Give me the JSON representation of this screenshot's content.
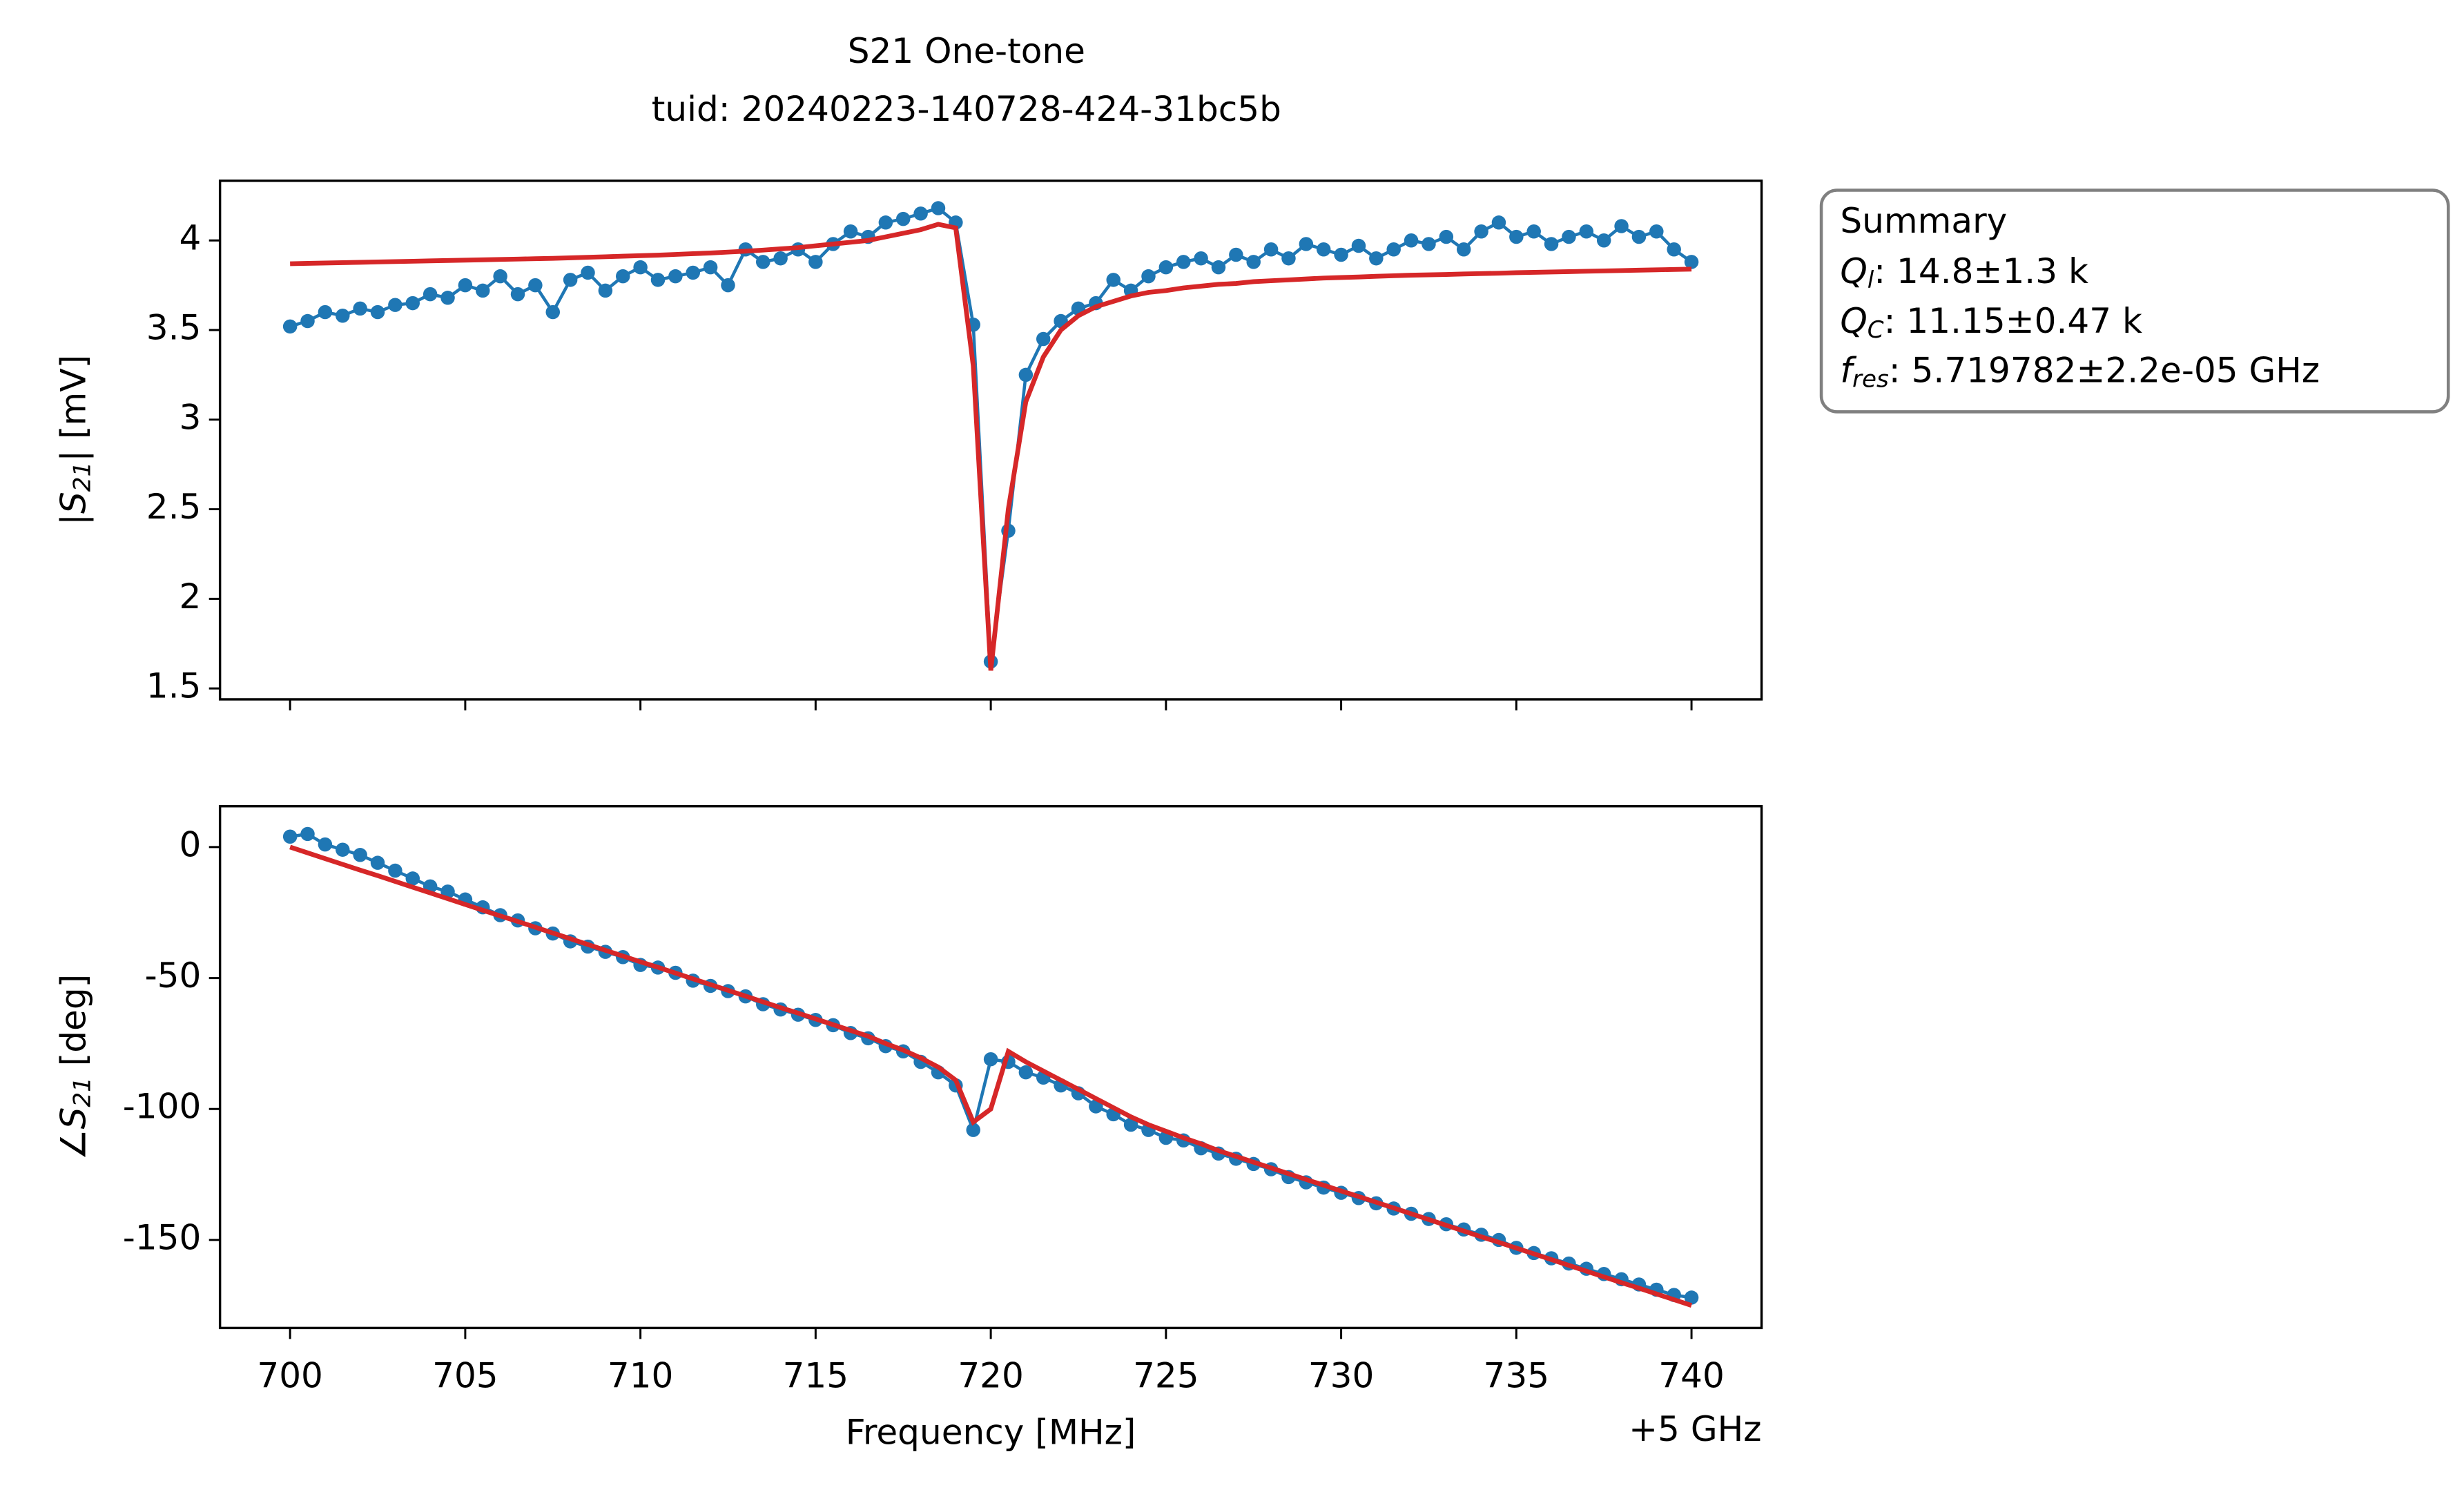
{
  "chart_data": [
    {
      "type": "line",
      "title": "S21 One-tone",
      "subtitle": "tuid: 20240223-140728-424-31bc5b",
      "ylabel": {
        "prefix": "|S",
        "sub": "21",
        "suffix": "| [mV]"
      },
      "x": [
        700,
        700.5,
        701,
        701.5,
        702,
        702.5,
        703,
        703.5,
        704,
        704.5,
        705,
        705.5,
        706,
        706.5,
        707,
        707.5,
        708,
        708.5,
        709,
        709.5,
        710,
        710.5,
        711,
        711.5,
        712,
        712.5,
        713,
        713.5,
        714,
        714.5,
        715,
        715.5,
        716,
        716.5,
        717,
        717.5,
        718,
        718.5,
        719,
        719.5,
        720,
        720.5,
        721,
        721.5,
        722,
        722.5,
        723,
        723.5,
        724,
        724.5,
        725,
        725.5,
        726,
        726.5,
        727,
        727.5,
        728,
        728.5,
        729,
        729.5,
        730,
        730.5,
        731,
        731.5,
        732,
        732.5,
        733,
        733.5,
        734,
        734.5,
        735,
        735.5,
        736,
        736.5,
        737,
        737.5,
        738,
        738.5,
        739,
        739.5,
        740
      ],
      "series": [
        {
          "color": "#1f77b4",
          "marker": true,
          "values": [
            3.52,
            3.55,
            3.6,
            3.58,
            3.62,
            3.6,
            3.64,
            3.65,
            3.7,
            3.68,
            3.75,
            3.72,
            3.8,
            3.7,
            3.75,
            3.6,
            3.78,
            3.82,
            3.72,
            3.8,
            3.85,
            3.78,
            3.8,
            3.82,
            3.85,
            3.75,
            3.95,
            3.88,
            3.9,
            3.95,
            3.88,
            3.98,
            4.05,
            4.02,
            4.1,
            4.12,
            4.15,
            4.18,
            4.1,
            3.53,
            1.65,
            2.38,
            3.25,
            3.45,
            3.55,
            3.62,
            3.65,
            3.78,
            3.72,
            3.8,
            3.85,
            3.88,
            3.9,
            3.85,
            3.92,
            3.88,
            3.95,
            3.9,
            3.98,
            3.95,
            3.92,
            3.97,
            3.9,
            3.95,
            4.0,
            3.98,
            4.02,
            3.95,
            4.05,
            4.1,
            4.02,
            4.05,
            3.98,
            4.02,
            4.05,
            4.0,
            4.08,
            4.02,
            4.05,
            3.95,
            3.88
          ]
        },
        {
          "color": "#d62728",
          "marker": false,
          "values": [
            3.87,
            3.872,
            3.874,
            3.876,
            3.878,
            3.88,
            3.882,
            3.884,
            3.886,
            3.888,
            3.89,
            3.892,
            3.894,
            3.896,
            3.898,
            3.9,
            3.903,
            3.906,
            3.909,
            3.912,
            3.915,
            3.918,
            3.922,
            3.926,
            3.93,
            3.935,
            3.94,
            3.946,
            3.953,
            3.96,
            3.97,
            3.98,
            3.99,
            4.0,
            4.02,
            4.04,
            4.06,
            4.09,
            4.07,
            3.3,
            1.6,
            2.5,
            3.1,
            3.35,
            3.5,
            3.58,
            3.63,
            3.66,
            3.69,
            3.71,
            3.72,
            3.735,
            3.745,
            3.755,
            3.76,
            3.77,
            3.775,
            3.78,
            3.785,
            3.79,
            3.793,
            3.796,
            3.8,
            3.803,
            3.806,
            3.808,
            3.81,
            3.813,
            3.815,
            3.817,
            3.82,
            3.822,
            3.824,
            3.826,
            3.828,
            3.83,
            3.832,
            3.834,
            3.836,
            3.838,
            3.84
          ]
        }
      ],
      "xlim": [
        698,
        742
      ],
      "xticks": [
        700,
        705,
        710,
        715,
        720,
        725,
        730,
        735,
        740
      ],
      "show_xtick_labels": false,
      "ylim": [
        1.439,
        4.333
      ],
      "yticks": [
        1.5,
        2,
        2.5,
        3,
        3.5,
        4
      ],
      "annotation": {
        "title": "Summary",
        "lines": [
          {
            "symbol": "Q",
            "sub": "l",
            "text": ": 14.8±1.3 k"
          },
          {
            "symbol": "Q",
            "sub": "C",
            "text": ": 11.15±0.47 k"
          },
          {
            "symbol": "f",
            "sub": "res",
            "text": ": 5.719782±2.2e-05 GHz"
          }
        ]
      }
    },
    {
      "type": "line",
      "ylabel": {
        "prefix": "∠S",
        "sub": "21",
        "suffix": " [deg]"
      },
      "xlabel": "Frequency [MHz]",
      "x_offset_text": "+5 GHz",
      "x": [
        700,
        700.5,
        701,
        701.5,
        702,
        702.5,
        703,
        703.5,
        704,
        704.5,
        705,
        705.5,
        706,
        706.5,
        707,
        707.5,
        708,
        708.5,
        709,
        709.5,
        710,
        710.5,
        711,
        711.5,
        712,
        712.5,
        713,
        713.5,
        714,
        714.5,
        715,
        715.5,
        716,
        716.5,
        717,
        717.5,
        718,
        718.5,
        719,
        719.5,
        720,
        720.5,
        721,
        721.5,
        722,
        722.5,
        723,
        723.5,
        724,
        724.5,
        725,
        725.5,
        726,
        726.5,
        727,
        727.5,
        728,
        728.5,
        729,
        729.5,
        730,
        730.5,
        731,
        731.5,
        732,
        732.5,
        733,
        733.5,
        734,
        734.5,
        735,
        735.5,
        736,
        736.5,
        737,
        737.5,
        738,
        738.5,
        739,
        739.5,
        740
      ],
      "series": [
        {
          "color": "#1f77b4",
          "marker": true,
          "values": [
            4,
            5,
            1,
            -1,
            -3,
            -6,
            -9,
            -12,
            -15,
            -17,
            -20,
            -23,
            -26,
            -28,
            -31,
            -33,
            -36,
            -38,
            -40,
            -42,
            -45,
            -46,
            -48,
            -51,
            -53,
            -55,
            -57,
            -60,
            -62,
            -64,
            -66,
            -68,
            -71,
            -73,
            -76,
            -78,
            -82,
            -86,
            -91,
            -108,
            -81,
            -82,
            -86,
            -88,
            -91,
            -94,
            -99,
            -102,
            -106,
            -108,
            -111,
            -112,
            -115,
            -117,
            -119,
            -121,
            -123,
            -126,
            -128,
            -130,
            -132,
            -134,
            -136,
            -138,
            -140,
            -142,
            -144,
            -146,
            -148,
            -150,
            -153,
            -155,
            -157,
            -159,
            -161,
            -163,
            -165,
            -167,
            -169,
            -171,
            -172
          ]
        },
        {
          "color": "#d62728",
          "marker": false,
          "values": [
            0,
            -2.2,
            -4.4,
            -6.6,
            -8.8,
            -10.9,
            -13.1,
            -15.3,
            -17.5,
            -19.7,
            -21.9,
            -24.1,
            -26.3,
            -28.4,
            -30.6,
            -32.8,
            -35,
            -37.2,
            -39.4,
            -41.6,
            -43.8,
            -45.9,
            -48.1,
            -50.3,
            -52.5,
            -54.7,
            -56.9,
            -59.1,
            -61.3,
            -63.4,
            -65.6,
            -67.8,
            -70,
            -72.2,
            -75,
            -77.5,
            -80.5,
            -84,
            -89,
            -105,
            -100,
            -78,
            -82,
            -85.5,
            -89,
            -92.5,
            -96,
            -99.5,
            -103,
            -106,
            -108.5,
            -111,
            -113.3,
            -115.9,
            -118.1,
            -120.3,
            -122.5,
            -124.7,
            -126.9,
            -129.1,
            -131.3,
            -133.4,
            -135.6,
            -137.8,
            -140,
            -142.2,
            -144.4,
            -146.6,
            -148.8,
            -150.9,
            -153.1,
            -155.3,
            -157.5,
            -159.7,
            -161.9,
            -164.1,
            -166.3,
            -168.4,
            -170.6,
            -172.8,
            -175
          ]
        }
      ],
      "xlim": [
        698,
        742
      ],
      "xticks": [
        700,
        705,
        710,
        715,
        720,
        725,
        730,
        735,
        740
      ],
      "show_xtick_labels": true,
      "ylim": [
        -183.6,
        15.6
      ],
      "yticks": [
        0,
        -50,
        -100,
        -150
      ]
    }
  ]
}
